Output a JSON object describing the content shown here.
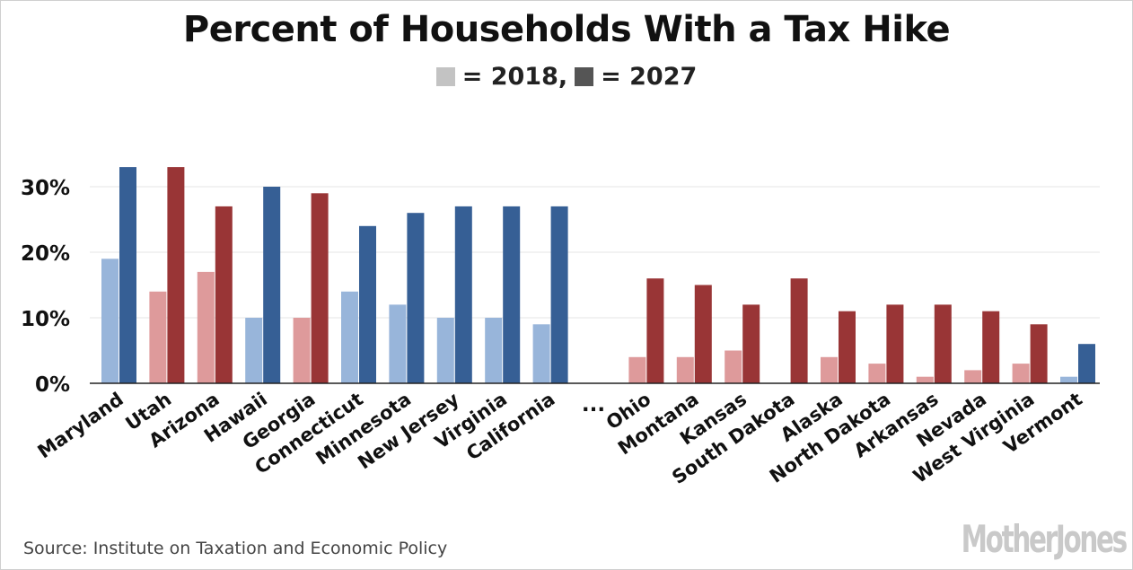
{
  "title": "Percent of Households With a Tax Hike",
  "legend": {
    "entries": [
      {
        "label": "= 2018,",
        "color": "#c3c3c3"
      },
      {
        "label": "= 2027",
        "color": "#555555"
      }
    ]
  },
  "source": "Source: Institute on Taxation and Economic Policy",
  "brand": "MotherJones",
  "chart_data": {
    "type": "bar",
    "categories": [
      "Maryland",
      "Utah",
      "Arizona",
      "Hawaii",
      "Georgia",
      "Connecticut",
      "Minnesota",
      "New Jersey",
      "Virginia",
      "California",
      "...",
      "Ohio",
      "Montana",
      "Kansas",
      "South Dakota",
      "Alaska",
      "North Dakota",
      "Arkansas",
      "Nevada",
      "West Virginia",
      "Vermont"
    ],
    "party": [
      "D",
      "R",
      "R",
      "D",
      "R",
      "D",
      "D",
      "D",
      "D",
      "D",
      "",
      "R",
      "R",
      "R",
      "R",
      "R",
      "R",
      "R",
      "R",
      "R",
      "D"
    ],
    "series": [
      {
        "name": "2018",
        "values": [
          19,
          14,
          17,
          10,
          10,
          14,
          12,
          10,
          10,
          9,
          null,
          4,
          4,
          5,
          0,
          4,
          3,
          1,
          2,
          3,
          1
        ]
      },
      {
        "name": "2027",
        "values": [
          33,
          33,
          27,
          30,
          29,
          24,
          26,
          27,
          27,
          27,
          null,
          16,
          15,
          12,
          16,
          11,
          12,
          12,
          11,
          9,
          6
        ]
      }
    ],
    "colors": {
      "D_2018": "#98b5da",
      "D_2027": "#365f95",
      "R_2018": "#de9a9b",
      "R_2027": "#993536"
    },
    "y_ticks": [
      0,
      10,
      20,
      30
    ],
    "y_tick_labels": [
      "0%",
      "10%",
      "20%",
      "30%"
    ],
    "ylim": [
      0,
      35
    ],
    "grid": true
  }
}
